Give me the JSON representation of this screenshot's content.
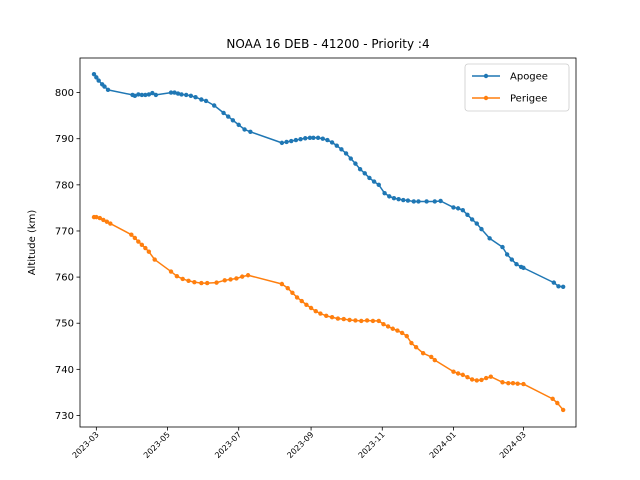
{
  "chart_data": {
    "type": "line",
    "title": "NOAA 16 DEB - 41200 - Priority :4",
    "xlabel": "",
    "ylabel": "Altitude (km)",
    "xlim": [
      "2023-02-15",
      "2024-04-15"
    ],
    "ylim": [
      727.5,
      807.5
    ],
    "yticks": [
      730,
      740,
      750,
      760,
      770,
      780,
      790,
      800
    ],
    "xticks": [
      "2023-03-01",
      "2023-05-01",
      "2023-07-01",
      "2023-09-01",
      "2023-11-01",
      "2024-01-01",
      "2024-03-01"
    ],
    "xtick_labels": [
      "2023-03",
      "2023-05",
      "2023-07",
      "2023-09",
      "2023-11",
      "2024-01",
      "2024-03"
    ],
    "grid": false,
    "legend_position": "top-right",
    "series": [
      {
        "name": "Apogee",
        "color": "#1f77b4",
        "points": [
          [
            "2023-02-27",
            804.0
          ],
          [
            "2023-03-01",
            803.3
          ],
          [
            "2023-03-03",
            802.6
          ],
          [
            "2023-03-06",
            801.8
          ],
          [
            "2023-03-08",
            801.3
          ],
          [
            "2023-03-11",
            800.6
          ],
          [
            "2023-04-01",
            799.5
          ],
          [
            "2023-04-03",
            799.3
          ],
          [
            "2023-04-06",
            799.6
          ],
          [
            "2023-04-09",
            799.5
          ],
          [
            "2023-04-12",
            799.5
          ],
          [
            "2023-04-15",
            799.6
          ],
          [
            "2023-04-18",
            799.9
          ],
          [
            "2023-04-21",
            799.5
          ],
          [
            "2023-05-04",
            800.0
          ],
          [
            "2023-05-07",
            800.0
          ],
          [
            "2023-05-10",
            799.8
          ],
          [
            "2023-05-13",
            799.6
          ],
          [
            "2023-05-17",
            799.5
          ],
          [
            "2023-05-21",
            799.3
          ],
          [
            "2023-05-25",
            799.0
          ],
          [
            "2023-05-30",
            798.5
          ],
          [
            "2023-06-03",
            798.2
          ],
          [
            "2023-06-10",
            797.2
          ],
          [
            "2023-06-18",
            795.6
          ],
          [
            "2023-06-22",
            794.8
          ],
          [
            "2023-06-26",
            794.0
          ],
          [
            "2023-07-01",
            793.0
          ],
          [
            "2023-07-06",
            792.0
          ],
          [
            "2023-07-11",
            791.5
          ],
          [
            "2023-08-07",
            789.1
          ],
          [
            "2023-08-11",
            789.3
          ],
          [
            "2023-08-15",
            789.5
          ],
          [
            "2023-08-19",
            789.7
          ],
          [
            "2023-08-23",
            789.9
          ],
          [
            "2023-08-27",
            790.1
          ],
          [
            "2023-08-31",
            790.2
          ],
          [
            "2023-09-03",
            790.2
          ],
          [
            "2023-09-07",
            790.2
          ],
          [
            "2023-09-11",
            790.0
          ],
          [
            "2023-09-15",
            789.7
          ],
          [
            "2023-09-19",
            789.2
          ],
          [
            "2023-09-23",
            788.5
          ],
          [
            "2023-09-27",
            787.7
          ],
          [
            "2023-10-01",
            786.8
          ],
          [
            "2023-10-05",
            785.7
          ],
          [
            "2023-10-09",
            784.6
          ],
          [
            "2023-10-13",
            783.4
          ],
          [
            "2023-10-17",
            782.5
          ],
          [
            "2023-10-21",
            781.5
          ],
          [
            "2023-10-25",
            780.7
          ],
          [
            "2023-10-29",
            780.0
          ],
          [
            "2023-11-03",
            778.2
          ],
          [
            "2023-11-07",
            777.5
          ],
          [
            "2023-11-11",
            777.1
          ],
          [
            "2023-11-15",
            776.9
          ],
          [
            "2023-11-19",
            776.7
          ],
          [
            "2023-11-23",
            776.6
          ],
          [
            "2023-11-28",
            776.4
          ],
          [
            "2023-12-02",
            776.4
          ],
          [
            "2023-12-09",
            776.4
          ],
          [
            "2023-12-16",
            776.4
          ],
          [
            "2023-12-21",
            776.5
          ],
          [
            "2024-01-01",
            775.1
          ],
          [
            "2024-01-05",
            774.9
          ],
          [
            "2024-01-09",
            774.5
          ],
          [
            "2024-01-13",
            773.5
          ],
          [
            "2024-01-17",
            772.5
          ],
          [
            "2024-01-21",
            771.6
          ],
          [
            "2024-01-25",
            770.4
          ],
          [
            "2024-02-01",
            768.4
          ],
          [
            "2024-02-12",
            766.5
          ],
          [
            "2024-02-16",
            764.9
          ],
          [
            "2024-02-20",
            763.8
          ],
          [
            "2024-02-24",
            762.8
          ],
          [
            "2024-02-28",
            762.2
          ],
          [
            "2024-03-01",
            762.0
          ],
          [
            "2024-03-27",
            758.8
          ],
          [
            "2024-03-31",
            758.0
          ],
          [
            "2024-04-04",
            757.9
          ]
        ]
      },
      {
        "name": "Perigee",
        "color": "#ff7f0e",
        "points": [
          [
            "2023-02-27",
            773.0
          ],
          [
            "2023-03-01",
            773.0
          ],
          [
            "2023-03-04",
            772.8
          ],
          [
            "2023-03-07",
            772.4
          ],
          [
            "2023-03-10",
            772.0
          ],
          [
            "2023-03-13",
            771.6
          ],
          [
            "2023-03-31",
            769.2
          ],
          [
            "2023-04-03",
            768.5
          ],
          [
            "2023-04-06",
            767.7
          ],
          [
            "2023-04-09",
            767.0
          ],
          [
            "2023-04-12",
            766.3
          ],
          [
            "2023-04-15",
            765.5
          ],
          [
            "2023-04-20",
            763.8
          ],
          [
            "2023-05-04",
            761.2
          ],
          [
            "2023-05-09",
            760.2
          ],
          [
            "2023-05-14",
            759.6
          ],
          [
            "2023-05-19",
            759.2
          ],
          [
            "2023-05-24",
            758.9
          ],
          [
            "2023-05-30",
            758.7
          ],
          [
            "2023-06-04",
            758.7
          ],
          [
            "2023-06-12",
            758.8
          ],
          [
            "2023-06-19",
            759.3
          ],
          [
            "2023-06-24",
            759.5
          ],
          [
            "2023-06-29",
            759.7
          ],
          [
            "2023-07-04",
            760.1
          ],
          [
            "2023-07-09",
            760.4
          ],
          [
            "2023-08-07",
            758.5
          ],
          [
            "2023-08-12",
            757.6
          ],
          [
            "2023-08-16",
            756.6
          ],
          [
            "2023-08-20",
            755.6
          ],
          [
            "2023-08-24",
            754.8
          ],
          [
            "2023-08-28",
            754.0
          ],
          [
            "2023-09-01",
            753.3
          ],
          [
            "2023-09-05",
            752.6
          ],
          [
            "2023-09-09",
            752.1
          ],
          [
            "2023-09-14",
            751.6
          ],
          [
            "2023-09-19",
            751.3
          ],
          [
            "2023-09-24",
            751.0
          ],
          [
            "2023-09-29",
            750.9
          ],
          [
            "2023-10-04",
            750.7
          ],
          [
            "2023-10-09",
            750.6
          ],
          [
            "2023-10-14",
            750.5
          ],
          [
            "2023-10-19",
            750.6
          ],
          [
            "2023-10-24",
            750.5
          ],
          [
            "2023-10-29",
            750.5
          ],
          [
            "2023-11-02",
            749.8
          ],
          [
            "2023-11-06",
            749.3
          ],
          [
            "2023-11-10",
            748.8
          ],
          [
            "2023-11-14",
            748.4
          ],
          [
            "2023-11-18",
            747.9
          ],
          [
            "2023-11-22",
            747.2
          ],
          [
            "2023-11-26",
            745.7
          ],
          [
            "2023-11-30",
            744.8
          ],
          [
            "2023-12-06",
            743.5
          ],
          [
            "2023-12-13",
            742.7
          ],
          [
            "2023-12-16",
            742.0
          ],
          [
            "2024-01-01",
            739.5
          ],
          [
            "2024-01-05",
            739.1
          ],
          [
            "2024-01-09",
            738.8
          ],
          [
            "2024-01-13",
            738.3
          ],
          [
            "2024-01-17",
            737.8
          ],
          [
            "2024-01-21",
            737.6
          ],
          [
            "2024-01-25",
            737.7
          ],
          [
            "2024-01-29",
            738.1
          ],
          [
            "2024-02-02",
            738.4
          ],
          [
            "2024-02-12",
            737.2
          ],
          [
            "2024-02-17",
            737.0
          ],
          [
            "2024-02-21",
            737.0
          ],
          [
            "2024-02-25",
            736.9
          ],
          [
            "2024-03-01",
            736.8
          ],
          [
            "2024-03-26",
            733.6
          ],
          [
            "2024-03-30",
            732.7
          ],
          [
            "2024-04-04",
            731.2
          ]
        ]
      }
    ]
  }
}
